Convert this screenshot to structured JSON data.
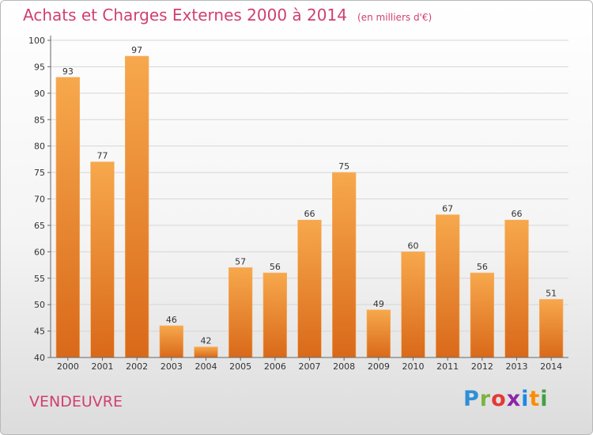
{
  "header": {
    "title": "Achats et Charges Externes 2000 à 2014",
    "unit": "(en milliers d'€)"
  },
  "location": "VENDEUVRE",
  "brand": {
    "letters": [
      "P",
      "r",
      "o",
      "x",
      "i",
      "t",
      "i"
    ],
    "colors": [
      "#2f8fd4",
      "#7cb342",
      "#e53935",
      "#8e24aa",
      "#1e88e5",
      "#fb8c00",
      "#43a047"
    ]
  },
  "chart_data": {
    "type": "bar",
    "categories": [
      "2000",
      "2001",
      "2002",
      "2003",
      "2004",
      "2005",
      "2006",
      "2007",
      "2008",
      "2009",
      "2010",
      "2011",
      "2012",
      "2013",
      "2014"
    ],
    "values": [
      93,
      77,
      97,
      46,
      42,
      57,
      56,
      66,
      75,
      49,
      60,
      67,
      56,
      66,
      51
    ],
    "data_labels": [
      "93",
      "77",
      "97",
      "46",
      "42",
      "57",
      "56",
      "66",
      "75",
      "49",
      "60",
      "67",
      "56",
      "66",
      "51"
    ],
    "yticks": [
      40,
      45,
      50,
      55,
      60,
      65,
      70,
      75,
      80,
      85,
      90,
      95,
      100
    ],
    "ylim": [
      40,
      100
    ],
    "grid": true,
    "bar_color": "#f08a2c"
  }
}
